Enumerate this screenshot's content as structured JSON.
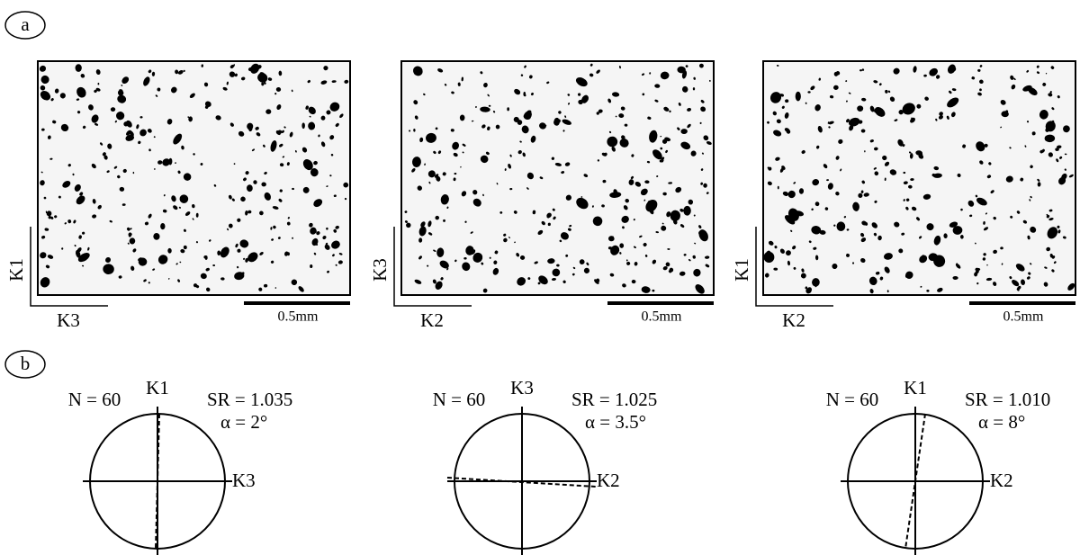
{
  "labels": {
    "a": "a",
    "b": "b"
  },
  "images": [
    {
      "vertical_axis": "K1",
      "horizontal_axis": "K3",
      "scale": "0.5mm"
    },
    {
      "vertical_axis": "K3",
      "horizontal_axis": "K2",
      "scale": "0.5mm"
    },
    {
      "vertical_axis": "K1",
      "horizontal_axis": "K2",
      "scale": "0.5mm"
    }
  ],
  "rose_diagrams": [
    {
      "n": "N = 60",
      "top_axis": "K1",
      "right_axis": "K3",
      "sr": "SR = 1.035",
      "alpha": "α = 2°"
    },
    {
      "n": "N = 60",
      "top_axis": "K3",
      "right_axis": "K2",
      "sr": "SR = 1.025",
      "alpha": "α = 3.5°"
    },
    {
      "n": "N = 60",
      "top_axis": "K1",
      "right_axis": "K2",
      "sr": "SR = 1.010",
      "alpha": "α = 8°"
    }
  ]
}
